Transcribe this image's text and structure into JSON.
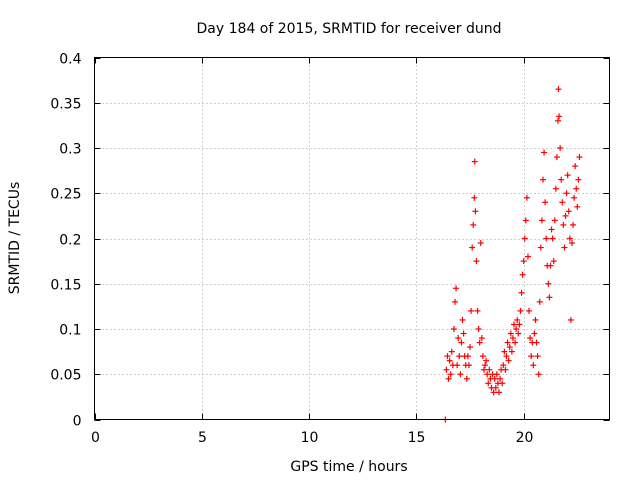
{
  "chart_data": {
    "type": "scatter",
    "title": "Day 184 of 2015, SRMTID for receiver dund",
    "xlabel": "GPS time / hours",
    "ylabel": "SRMTID / TECUs",
    "xlim": [
      0,
      24
    ],
    "ylim": [
      0,
      0.4
    ],
    "x_ticks": [
      0,
      5,
      10,
      15,
      20
    ],
    "x_tick_labels": [
      "0",
      "5",
      "10",
      "15",
      "20"
    ],
    "y_ticks": [
      0,
      0.05,
      0.1,
      0.15,
      0.2,
      0.25,
      0.3,
      0.35,
      0.4
    ],
    "y_tick_labels": [
      "0",
      "0.05",
      "0.1",
      "0.15",
      "0.2",
      "0.25",
      "0.3",
      "0.35",
      "0.4"
    ],
    "grid": true,
    "marker": "+",
    "color": "#ff0000",
    "series": [
      {
        "name": "SRMTID",
        "points": [
          [
            16.35,
            0.0
          ],
          [
            16.4,
            0.055
          ],
          [
            16.45,
            0.07
          ],
          [
            16.5,
            0.045
          ],
          [
            16.55,
            0.065
          ],
          [
            16.6,
            0.05
          ],
          [
            16.65,
            0.075
          ],
          [
            16.7,
            0.06
          ],
          [
            16.75,
            0.1
          ],
          [
            16.8,
            0.13
          ],
          [
            16.85,
            0.145
          ],
          [
            16.9,
            0.06
          ],
          [
            16.95,
            0.09
          ],
          [
            17.0,
            0.07
          ],
          [
            17.05,
            0.05
          ],
          [
            17.1,
            0.085
          ],
          [
            17.15,
            0.11
          ],
          [
            17.2,
            0.095
          ],
          [
            17.25,
            0.07
          ],
          [
            17.3,
            0.06
          ],
          [
            17.35,
            0.045
          ],
          [
            17.4,
            0.07
          ],
          [
            17.45,
            0.06
          ],
          [
            17.5,
            0.08
          ],
          [
            17.55,
            0.12
          ],
          [
            17.6,
            0.19
          ],
          [
            17.65,
            0.215
          ],
          [
            17.7,
            0.245
          ],
          [
            17.72,
            0.285
          ],
          [
            17.75,
            0.23
          ],
          [
            17.8,
            0.175
          ],
          [
            17.85,
            0.12
          ],
          [
            17.9,
            0.1
          ],
          [
            17.95,
            0.085
          ],
          [
            18.0,
            0.195
          ],
          [
            18.05,
            0.09
          ],
          [
            18.1,
            0.07
          ],
          [
            18.15,
            0.055
          ],
          [
            18.2,
            0.06
          ],
          [
            18.25,
            0.065
          ],
          [
            18.3,
            0.05
          ],
          [
            18.35,
            0.04
          ],
          [
            18.4,
            0.055
          ],
          [
            18.45,
            0.045
          ],
          [
            18.5,
            0.035
          ],
          [
            18.55,
            0.05
          ],
          [
            18.6,
            0.03
          ],
          [
            18.65,
            0.045
          ],
          [
            18.7,
            0.035
          ],
          [
            18.75,
            0.05
          ],
          [
            18.8,
            0.04
          ],
          [
            18.85,
            0.03
          ],
          [
            18.9,
            0.045
          ],
          [
            18.95,
            0.055
          ],
          [
            19.0,
            0.04
          ],
          [
            19.05,
            0.06
          ],
          [
            19.1,
            0.075
          ],
          [
            19.15,
            0.055
          ],
          [
            19.2,
            0.07
          ],
          [
            19.25,
            0.085
          ],
          [
            19.3,
            0.065
          ],
          [
            19.35,
            0.08
          ],
          [
            19.4,
            0.095
          ],
          [
            19.45,
            0.075
          ],
          [
            19.5,
            0.09
          ],
          [
            19.55,
            0.105
          ],
          [
            19.6,
            0.085
          ],
          [
            19.65,
            0.1
          ],
          [
            19.7,
            0.11
          ],
          [
            19.75,
            0.095
          ],
          [
            19.8,
            0.105
          ],
          [
            19.85,
            0.12
          ],
          [
            19.9,
            0.14
          ],
          [
            19.95,
            0.16
          ],
          [
            20.0,
            0.175
          ],
          [
            20.05,
            0.2
          ],
          [
            20.1,
            0.22
          ],
          [
            20.15,
            0.245
          ],
          [
            20.2,
            0.18
          ],
          [
            20.25,
            0.12
          ],
          [
            20.3,
            0.09
          ],
          [
            20.35,
            0.07
          ],
          [
            20.4,
            0.085
          ],
          [
            20.45,
            0.06
          ],
          [
            20.5,
            0.095
          ],
          [
            20.55,
            0.11
          ],
          [
            20.6,
            0.085
          ],
          [
            20.65,
            0.07
          ],
          [
            20.7,
            0.05
          ],
          [
            20.75,
            0.13
          ],
          [
            20.8,
            0.19
          ],
          [
            20.85,
            0.22
          ],
          [
            20.9,
            0.265
          ],
          [
            20.95,
            0.295
          ],
          [
            21.0,
            0.24
          ],
          [
            21.05,
            0.2
          ],
          [
            21.1,
            0.17
          ],
          [
            21.15,
            0.15
          ],
          [
            21.2,
            0.135
          ],
          [
            21.25,
            0.17
          ],
          [
            21.3,
            0.21
          ],
          [
            21.35,
            0.2
          ],
          [
            21.4,
            0.175
          ],
          [
            21.45,
            0.22
          ],
          [
            21.5,
            0.255
          ],
          [
            21.55,
            0.29
          ],
          [
            21.6,
            0.33
          ],
          [
            21.62,
            0.365
          ],
          [
            21.65,
            0.335
          ],
          [
            21.7,
            0.3
          ],
          [
            21.75,
            0.265
          ],
          [
            21.8,
            0.24
          ],
          [
            21.85,
            0.215
          ],
          [
            21.9,
            0.19
          ],
          [
            21.95,
            0.225
          ],
          [
            22.0,
            0.25
          ],
          [
            22.05,
            0.27
          ],
          [
            22.1,
            0.23
          ],
          [
            22.15,
            0.2
          ],
          [
            22.2,
            0.11
          ],
          [
            22.25,
            0.195
          ],
          [
            22.3,
            0.215
          ],
          [
            22.35,
            0.245
          ],
          [
            22.4,
            0.28
          ],
          [
            22.45,
            0.255
          ],
          [
            22.5,
            0.235
          ],
          [
            22.55,
            0.265
          ],
          [
            22.6,
            0.29
          ]
        ]
      }
    ]
  }
}
